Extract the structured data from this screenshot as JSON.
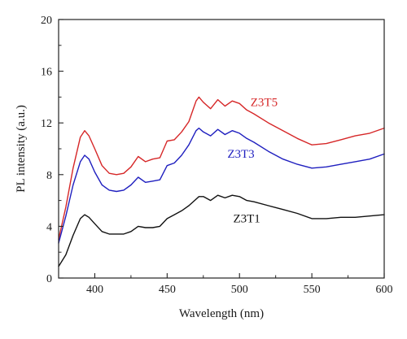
{
  "chart_data": {
    "type": "line",
    "title": "",
    "xlabel": "Wavelength (nm)",
    "ylabel": "PL intensity (a.u.)",
    "xlim": [
      375,
      600
    ],
    "ylim": [
      0,
      20
    ],
    "xticks": [
      400,
      450,
      500,
      550,
      600
    ],
    "yticks": [
      0,
      4,
      8,
      12,
      16,
      20
    ],
    "grid": false,
    "legend": "none",
    "series": [
      {
        "name": "Z3T5",
        "color": "#d62728",
        "x": [
          375,
          380,
          385,
          390,
          393,
          396,
          400,
          405,
          410,
          415,
          420,
          425,
          430,
          435,
          440,
          445,
          450,
          455,
          460,
          465,
          470,
          472,
          475,
          480,
          485,
          490,
          495,
          500,
          505,
          510,
          520,
          530,
          540,
          550,
          560,
          570,
          580,
          590,
          600
        ],
        "y": [
          3.0,
          5.5,
          8.5,
          10.9,
          11.4,
          11.0,
          10.0,
          8.7,
          8.1,
          8.0,
          8.1,
          8.6,
          9.4,
          9.0,
          9.2,
          9.3,
          10.6,
          10.7,
          11.3,
          12.1,
          13.7,
          14.0,
          13.6,
          13.1,
          13.8,
          13.3,
          13.7,
          13.5,
          13.0,
          12.7,
          12.0,
          11.4,
          10.8,
          10.3,
          10.4,
          10.7,
          11.0,
          11.2,
          11.6
        ]
      },
      {
        "name": "Z3T3",
        "color": "#1f1fbf",
        "x": [
          375,
          380,
          385,
          390,
          393,
          396,
          400,
          405,
          410,
          415,
          420,
          425,
          430,
          435,
          440,
          445,
          450,
          455,
          460,
          465,
          470,
          472,
          475,
          480,
          485,
          490,
          495,
          500,
          505,
          510,
          520,
          530,
          540,
          550,
          560,
          570,
          580,
          590,
          600
        ],
        "y": [
          2.7,
          4.8,
          7.2,
          9.0,
          9.5,
          9.2,
          8.2,
          7.2,
          6.8,
          6.7,
          6.8,
          7.2,
          7.8,
          7.4,
          7.5,
          7.6,
          8.7,
          8.9,
          9.5,
          10.3,
          11.4,
          11.6,
          11.3,
          11.0,
          11.5,
          11.1,
          11.4,
          11.2,
          10.8,
          10.5,
          9.8,
          9.2,
          8.8,
          8.5,
          8.6,
          8.8,
          9.0,
          9.2,
          9.6
        ]
      },
      {
        "name": "Z3T1",
        "color": "#111111",
        "x": [
          375,
          380,
          385,
          390,
          393,
          396,
          400,
          405,
          410,
          415,
          420,
          425,
          430,
          435,
          440,
          445,
          450,
          455,
          460,
          465,
          470,
          472,
          475,
          480,
          485,
          490,
          495,
          500,
          505,
          510,
          520,
          530,
          540,
          550,
          560,
          570,
          580,
          590,
          600
        ],
        "y": [
          0.9,
          1.8,
          3.3,
          4.6,
          4.9,
          4.7,
          4.2,
          3.6,
          3.4,
          3.4,
          3.4,
          3.6,
          4.0,
          3.9,
          3.9,
          4.0,
          4.6,
          4.9,
          5.2,
          5.6,
          6.1,
          6.3,
          6.3,
          6.0,
          6.4,
          6.2,
          6.4,
          6.3,
          6.0,
          5.9,
          5.6,
          5.3,
          5.0,
          4.6,
          4.6,
          4.7,
          4.7,
          4.8,
          4.9
        ]
      }
    ],
    "annotations": [
      {
        "text": "Z3T5",
        "x": 517,
        "y": 13.3,
        "color": "#d62728"
      },
      {
        "text": "Z3T3",
        "x": 501,
        "y": 9.3,
        "color": "#1f1fbf"
      },
      {
        "text": "Z3T1",
        "x": 505,
        "y": 4.3,
        "color": "#111111"
      }
    ]
  }
}
